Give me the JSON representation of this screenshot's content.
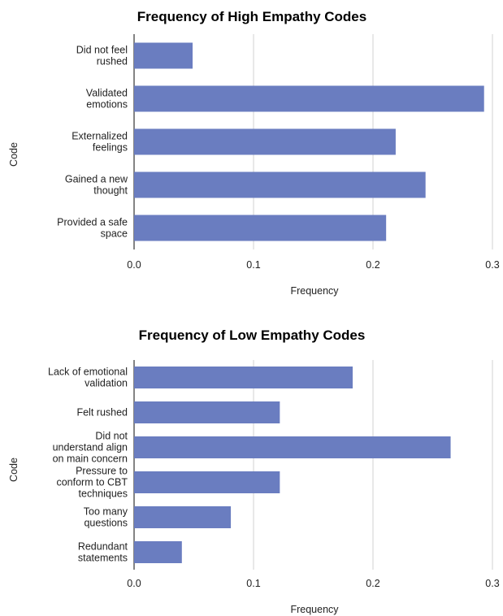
{
  "chart_data": [
    {
      "type": "bar",
      "orientation": "horizontal",
      "title": "Frequency of High Empathy Codes",
      "xlabel": "Frequency",
      "ylabel": "Code",
      "xlim": [
        0,
        0.3
      ],
      "xticks": [
        "0.0",
        "0.1",
        "0.2",
        "0.3"
      ],
      "grid": true,
      "categories": [
        [
          "Did not feel",
          "rushed"
        ],
        [
          "Validated",
          "emotions"
        ],
        [
          "Externalized",
          "feelings"
        ],
        [
          "Gained a new",
          "thought"
        ],
        [
          "Provided a safe",
          "space"
        ]
      ],
      "values": [
        0.049,
        0.293,
        0.219,
        0.244,
        0.211
      ],
      "colors": {
        "bar": "#6a7dc0"
      }
    },
    {
      "type": "bar",
      "orientation": "horizontal",
      "title": "Frequency of Low Empathy Codes",
      "xlabel": "Frequency",
      "ylabel": "Code",
      "xlim": [
        0,
        0.3
      ],
      "xticks": [
        "0.0",
        "0.1",
        "0.2",
        "0.3"
      ],
      "grid": true,
      "categories": [
        [
          "Lack of emotional",
          "validation"
        ],
        [
          "Felt rushed"
        ],
        [
          "Did not",
          "understand align",
          "on main concern"
        ],
        [
          "Pressure to",
          "conform to CBT",
          "techniques"
        ],
        [
          "Too many",
          "questions"
        ],
        [
          "Redundant",
          "statements"
        ]
      ],
      "values": [
        0.183,
        0.122,
        0.265,
        0.122,
        0.081,
        0.04
      ],
      "colors": {
        "bar": "#6a7dc0"
      }
    }
  ]
}
